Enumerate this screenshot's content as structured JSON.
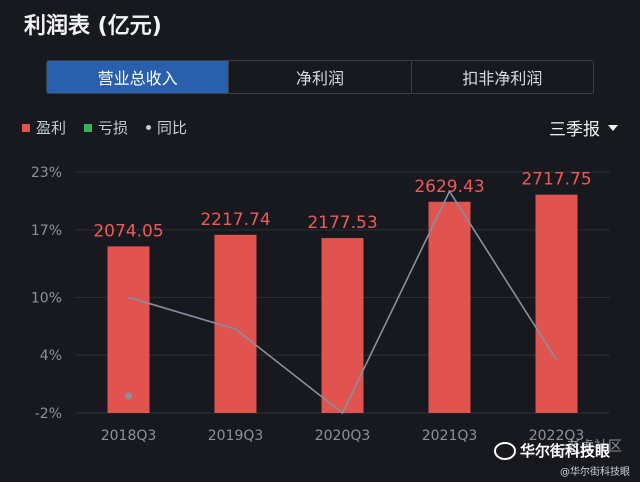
{
  "header": {
    "title": "利润表 (亿元)"
  },
  "tabs": [
    {
      "label": "营业总收入",
      "active": true
    },
    {
      "label": "净利润",
      "active": false
    },
    {
      "label": "扣非净利润",
      "active": false
    }
  ],
  "legend": {
    "items": [
      {
        "label": "盈利",
        "color": "#e0534f",
        "icon": "square"
      },
      {
        "label": "亏损",
        "color": "#35b35a",
        "icon": "square"
      },
      {
        "label": "同比",
        "color": "#c9cbd3",
        "icon": "dot"
      }
    ]
  },
  "period_selector": {
    "label": "三季报"
  },
  "watermark": {
    "main": "华尔街科技眼",
    "sub": "@华尔街科技眼",
    "corner": "老虎社区"
  },
  "chart_data": {
    "type": "bar",
    "categories": [
      "2018Q3",
      "2019Q3",
      "2020Q3",
      "2021Q3",
      "2022Q3"
    ],
    "values": [
      2074.05,
      2217.74,
      2177.53,
      2629.43,
      2717.75
    ],
    "value_labels": [
      "2074.05",
      "2217.74",
      "2177.53",
      "2629.43",
      "2717.75"
    ],
    "bar_color": "#e0534f",
    "label_color": "#f05a55",
    "line": {
      "name": "同比",
      "values": [
        10,
        6.7,
        -2,
        21,
        3.5
      ],
      "color": "#8a8fa0"
    },
    "y_ticks": [
      "23%",
      "17%",
      "10%",
      "4%",
      "-2%"
    ],
    "y_tick_values": [
      23,
      17,
      10,
      4,
      -2
    ],
    "ylim_percent": [
      -2,
      23
    ],
    "bar_ylim": [
      0,
      3000
    ],
    "grid": true
  }
}
